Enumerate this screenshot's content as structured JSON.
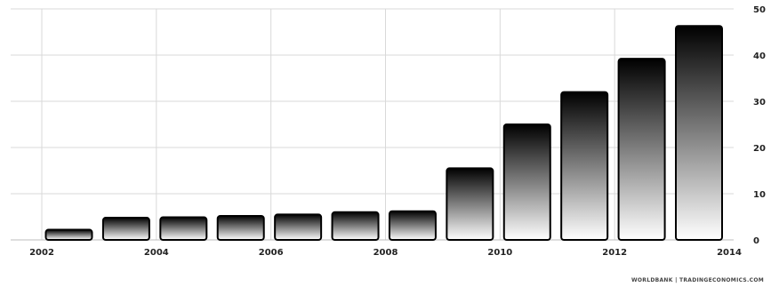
{
  "chart_data": {
    "type": "bar",
    "categories": [
      "2002",
      "2003",
      "2004",
      "2005",
      "2006",
      "2007",
      "2008",
      "2009",
      "2010",
      "2011",
      "2012",
      "2013"
    ],
    "values": [
      2.2,
      4.8,
      4.9,
      5.2,
      5.5,
      6.0,
      6.2,
      15.5,
      25.0,
      32.0,
      39.2,
      46.3
    ],
    "x_tick_labels": [
      "2002",
      "2004",
      "2006",
      "2008",
      "2010",
      "2012",
      "2014"
    ],
    "y_tick_labels": [
      "0",
      "10",
      "20",
      "30",
      "40",
      "50"
    ],
    "ylim": [
      0,
      50
    ],
    "y_axis_position": "right",
    "grid": true,
    "bar_gradient": [
      "#000000",
      "#ffffff"
    ],
    "bar_stroke": "#000000",
    "grid_color": "#d9d9d9"
  },
  "source": "WORLDBANK | TRADINGECONOMICS.COM"
}
